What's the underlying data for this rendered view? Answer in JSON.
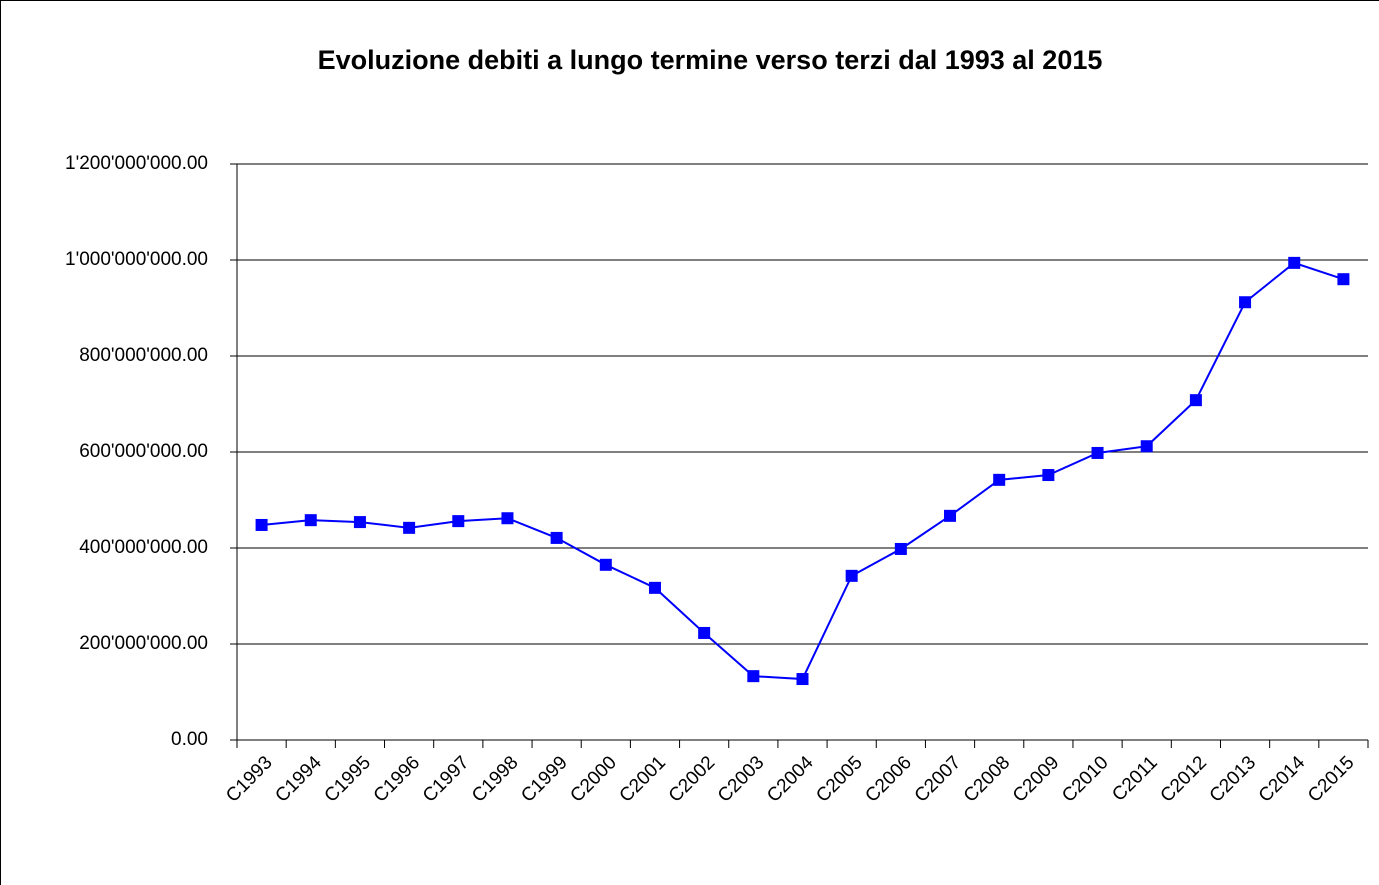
{
  "chart_data": {
    "type": "line",
    "title": "Evoluzione debiti a lungo termine verso terzi dal 1993 al 2015",
    "categories": [
      "C1993",
      "C1994",
      "C1995",
      "C1996",
      "C1997",
      "C1998",
      "C1999",
      "C2000",
      "C2001",
      "C2002",
      "C2003",
      "C2004",
      "C2005",
      "C2006",
      "C2007",
      "C2008",
      "C2009",
      "C2010",
      "C2011",
      "C2012",
      "C2013",
      "C2014",
      "C2015"
    ],
    "values": [
      448000000,
      458000000,
      454000000,
      442000000,
      456000000,
      462000000,
      421000000,
      365000000,
      317000000,
      223000000,
      133000000,
      127000000,
      342000000,
      398000000,
      467000000,
      542000000,
      552000000,
      598000000,
      612000000,
      708000000,
      912000000,
      994000000,
      960000000
    ],
    "color": "#0000ff",
    "ylim": [
      0,
      1200000000
    ],
    "yticks": [
      {
        "value": 0,
        "label": "0.00"
      },
      {
        "value": 200000000,
        "label": "200'000'000.00"
      },
      {
        "value": 400000000,
        "label": "400'000'000.00"
      },
      {
        "value": 600000000,
        "label": "600'000'000.00"
      },
      {
        "value": 800000000,
        "label": "800'000'000.00"
      },
      {
        "value": 1000000000,
        "label": "1'000'000'000.00"
      },
      {
        "value": 1200000000,
        "label": "1'200'000'000.00"
      }
    ],
    "grid": true
  }
}
